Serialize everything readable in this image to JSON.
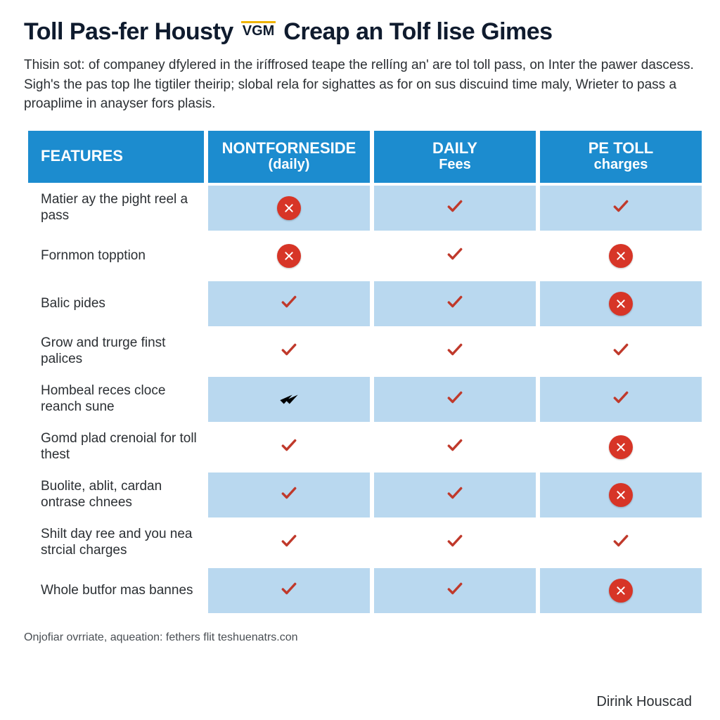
{
  "colors": {
    "header_bg": "#1c8ccf",
    "header_text": "#ffffff",
    "row_tint": "#b9d8ef",
    "check_stroke": "#c0392b",
    "x_bg": "#d73527",
    "title_color": "#0f1b2e",
    "badge_bar": "#f0b400",
    "body_text": "#2b2f33",
    "footnote_text": "#4a4f54",
    "page_bg": "#ffffff"
  },
  "typography": {
    "title_size_pt": 26,
    "intro_size_pt": 14,
    "header_size_pt": 17,
    "cell_size_pt": 14,
    "footnote_size_pt": 12,
    "brand_size_pt": 15
  },
  "title": {
    "seg1": "Toll Pas-fer Housty",
    "badge": "VGM",
    "seg2": "Creap",
    "seg3": "an Tolf lise Gimes"
  },
  "intro": "Thisin sot: of companey dfylered in the iríffrosed teape the rellíng an' are tol toll pass, on Inter the pawer dascess. Sigh's the pas top lhe tigtiler theirip; slobal rela for sighattes as for on sus discuind time maly, Wrieter to pass a proaplime in anayser fors plasis.",
  "table": {
    "type": "comparison-table",
    "columns": [
      {
        "key": "features",
        "label": "Features",
        "sub": ""
      },
      {
        "key": "plan_a",
        "label": "Nontforneside",
        "sub": "(daily)"
      },
      {
        "key": "plan_b",
        "label": "Daily",
        "sub": "Fees"
      },
      {
        "key": "plan_c",
        "label": "Pe toll",
        "sub": "charges"
      }
    ],
    "rows": [
      {
        "feature": "Matier ay the pight reel a pass",
        "cells": [
          "x",
          "check",
          "check"
        ]
      },
      {
        "feature": "Fornmon topption",
        "cells": [
          "x",
          "check",
          "x"
        ]
      },
      {
        "feature": "Balic pides",
        "cells": [
          "check",
          "check",
          "x"
        ]
      },
      {
        "feature": "Grow and trurge finst palices",
        "cells": [
          "check",
          "check",
          "check"
        ]
      },
      {
        "feature": "Hombeal reces cloce reanch sune",
        "cells": [
          "dcheck",
          "check",
          "check"
        ]
      },
      {
        "feature": "Gomd plad crenoial for toll thest",
        "cells": [
          "check",
          "check",
          "x"
        ]
      },
      {
        "feature": "Buolite, ablit, cardan ontrase chnees",
        "cells": [
          "check",
          "check",
          "x"
        ]
      },
      {
        "feature": "Shilt day ree and you nea strcial charges",
        "cells": [
          "check",
          "check",
          "check"
        ]
      },
      {
        "feature": "Whole butfor mas bannes",
        "cells": [
          "check",
          "check",
          "x"
        ]
      }
    ]
  },
  "footnote": "Onjofiar ovrriate, aqueation: fethers flit teshuenatrs.con",
  "brand": "Dirink Houscad"
}
